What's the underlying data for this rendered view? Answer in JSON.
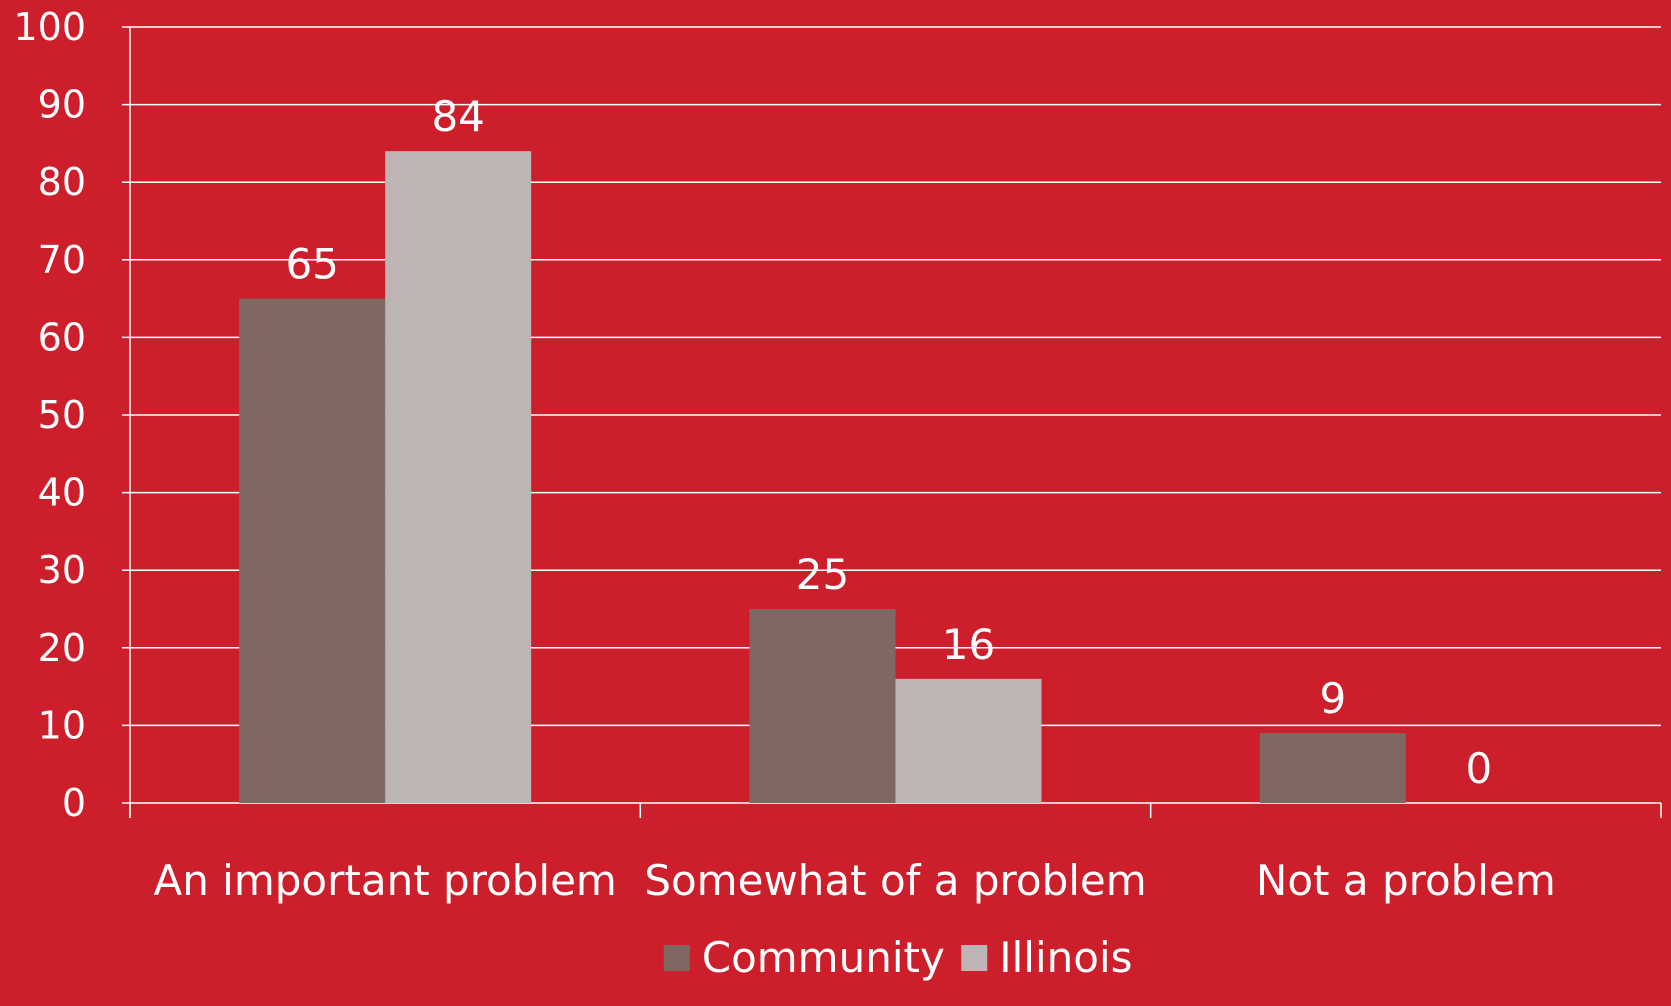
{
  "chart_data": {
    "type": "bar",
    "title": "",
    "xlabel": "",
    "ylabel": "",
    "ylim": [
      0,
      100
    ],
    "ytick_step": 10,
    "grid": true,
    "legend_position": "bottom",
    "categories": [
      "An important problem",
      "Somewhat of a problem",
      "Not a problem"
    ],
    "series": [
      {
        "name": "Community",
        "values": [
          65,
          25,
          9
        ],
        "color": "#7f6862"
      },
      {
        "name": "Illinois",
        "values": [
          84,
          16,
          0
        ],
        "color": "#bdb5b4"
      }
    ],
    "background_color": "#cc1f2b",
    "gridline_color": "#ffffff",
    "text_color": "#ffffff"
  }
}
